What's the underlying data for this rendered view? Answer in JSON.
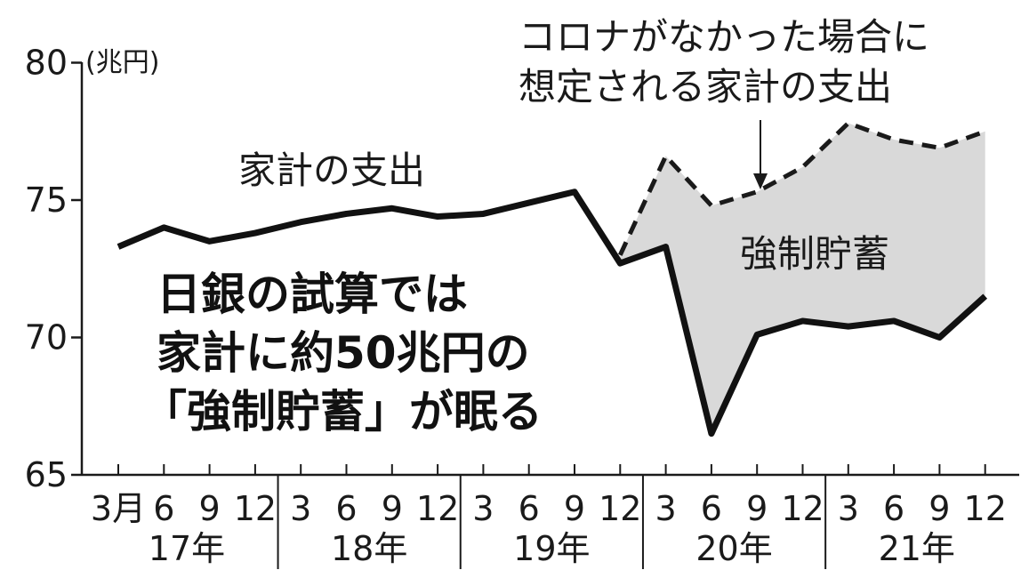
{
  "chart_data": {
    "type": "line",
    "y_unit": "(兆円)",
    "ylim": [
      65,
      80
    ],
    "yticks": [
      "80",
      "75",
      "70",
      "65"
    ],
    "x_month_labels": [
      "3月",
      "6",
      "9",
      "12",
      "3",
      "6",
      "9",
      "12",
      "3",
      "6",
      "9",
      "12",
      "3",
      "6",
      "9",
      "12",
      "3",
      "6",
      "9",
      "12"
    ],
    "x_year_labels": [
      "17年",
      "18年",
      "19年",
      "20年",
      "21年"
    ],
    "series": [
      {
        "name": "家計の支出",
        "style": "solid",
        "values": [
          73.3,
          74.0,
          73.5,
          73.8,
          74.2,
          74.5,
          74.7,
          74.4,
          74.5,
          74.9,
          75.3,
          72.7,
          73.3,
          66.5,
          70.1,
          70.6,
          70.4,
          70.6,
          70.0,
          71.5
        ]
      },
      {
        "name": "コロナがなかった場合に想定される家計の支出",
        "style": "dashed",
        "values": [
          null,
          null,
          null,
          null,
          null,
          null,
          null,
          null,
          null,
          null,
          null,
          73.0,
          76.6,
          74.8,
          75.3,
          76.2,
          77.8,
          77.2,
          76.9,
          77.5
        ]
      }
    ],
    "shaded_region_label": "強制貯蓄",
    "annotations": {
      "counterfactual_line1": "コロナがなかった場合に",
      "counterfactual_line2": "想定される家計の支出",
      "actual_label": "家計の支出",
      "headline_line1": "日銀の試算では",
      "headline_line2": "家計に約50兆円の",
      "headline_line3": "「強制貯蓄」が眠る"
    },
    "grid": false
  }
}
